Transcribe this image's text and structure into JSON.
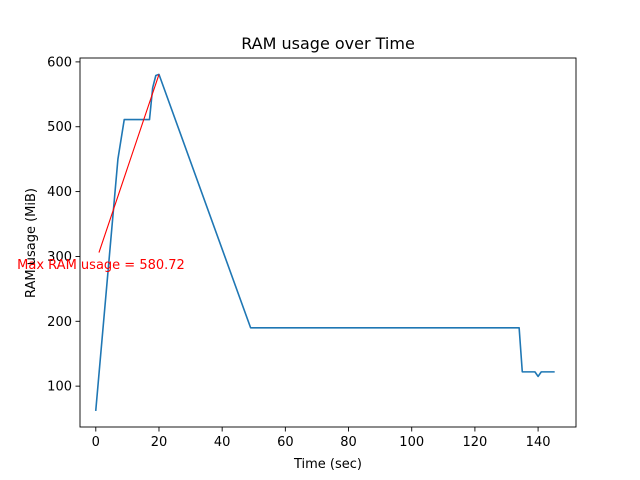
{
  "chart_data": {
    "type": "line",
    "title": "RAM usage over Time",
    "xlabel": "Time (sec)",
    "ylabel": "RAM usage (MiB)",
    "xlim": [
      -5,
      152
    ],
    "ylim": [
      37,
      606
    ],
    "x_ticks": [
      0,
      20,
      40,
      60,
      80,
      100,
      120,
      140
    ],
    "y_ticks": [
      100,
      200,
      300,
      400,
      500,
      600
    ],
    "grid": false,
    "series": [
      {
        "color": "#1f77b4",
        "x": [
          0,
          7,
          9,
          17,
          18,
          19,
          20,
          49,
          134,
          135,
          139,
          140,
          141,
          145
        ],
        "y": [
          63,
          450,
          511,
          511,
          560,
          579,
          580.72,
          190,
          190,
          122,
          122,
          115,
          122,
          122
        ]
      }
    ],
    "annotation": {
      "text": "Max RAM usage = 580.72",
      "color": "#ff0000",
      "point": [
        20,
        580.72
      ],
      "text_anchor": [
        1,
        306
      ]
    }
  }
}
